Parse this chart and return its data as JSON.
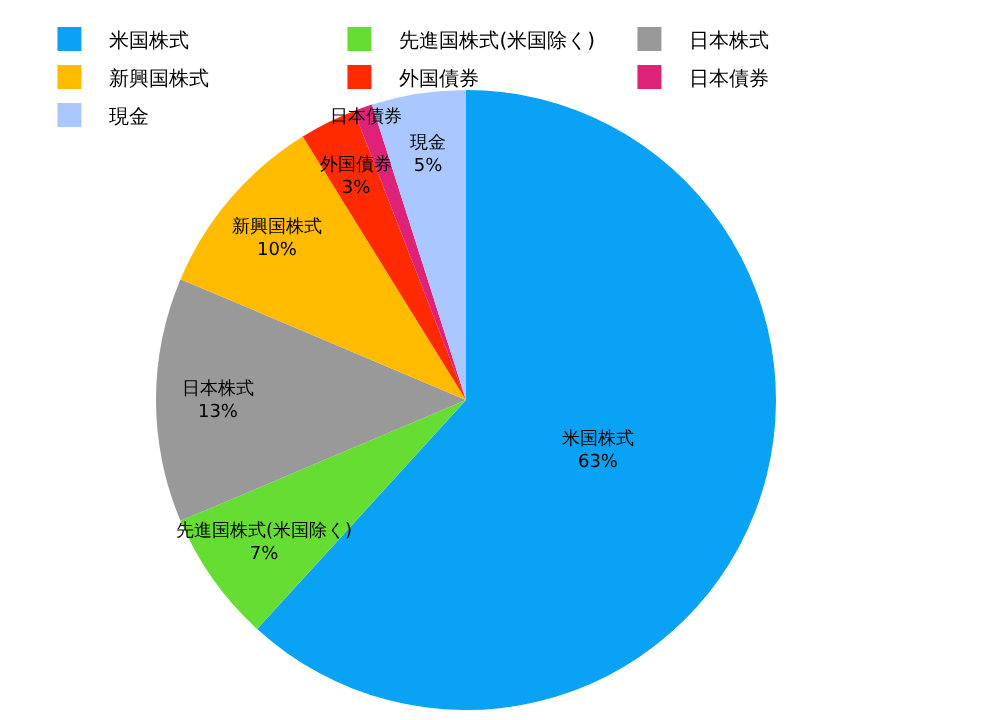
{
  "chart_data": {
    "type": "pie",
    "categories": [
      "米国株式",
      "先進国株式(米国除く)",
      "日本株式",
      "新興国株式",
      "外国債券",
      "日本債券",
      "現金"
    ],
    "values": [
      63,
      7,
      13,
      10,
      3,
      1,
      5
    ],
    "colors": [
      "#0aa2f5",
      "#66dd33",
      "#999999",
      "#ffbb00",
      "#ff2a00",
      "#dd2277",
      "#aac8ff"
    ],
    "value_labels": [
      "63%",
      "7%",
      "13%",
      "10%",
      "3%",
      null,
      "5%"
    ],
    "legend": "top"
  }
}
